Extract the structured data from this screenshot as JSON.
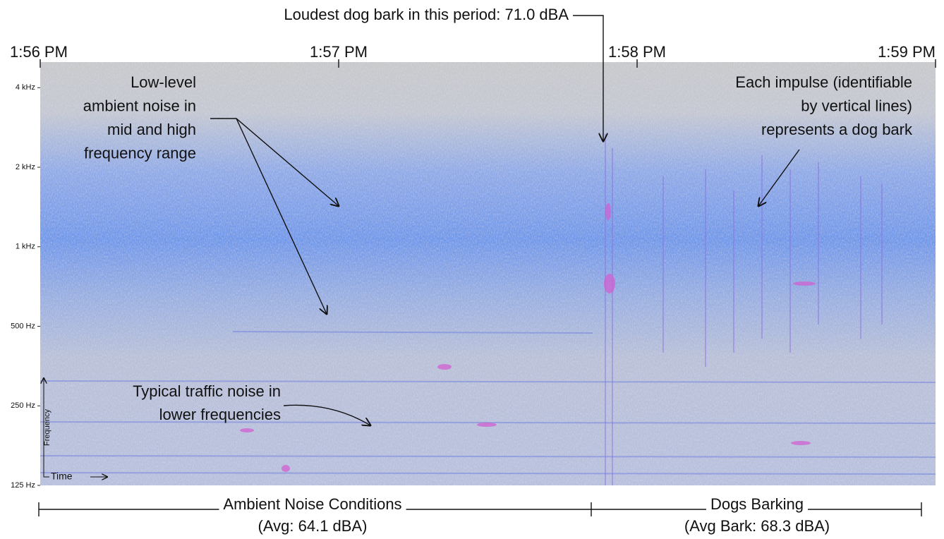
{
  "chart_data": {
    "type": "spectrogram",
    "xticks": [
      "1:56 PM",
      "1:57 PM",
      "1:58 PM",
      "1:59 PM"
    ],
    "ylim": [
      125,
      5000
    ],
    "y_scale": "log",
    "yticks": [
      {
        "value": 125,
        "label": "125 Hz"
      },
      {
        "value": 250,
        "label": "250 Hz"
      },
      {
        "value": 500,
        "label": "500 Hz"
      },
      {
        "value": 1000,
        "label": "1 kHz"
      },
      {
        "value": 2000,
        "label": "2 kHz"
      },
      {
        "value": 4000,
        "label": "4 kHz"
      }
    ],
    "x_label": "Time",
    "y_label": "Frequency",
    "annotations": {
      "loudest": "Loudest dog bark in this period: 71.0 dBA",
      "ambient": [
        "Low-level",
        "ambient noise in",
        "mid and high",
        "frequency range"
      ],
      "impulse": [
        "Each impulse (identifiable",
        "by vertical lines)",
        "represents a dog bark"
      ],
      "traffic": [
        "Typical traffic noise in",
        "lower frequencies"
      ]
    },
    "periods": [
      {
        "name": "Ambient Noise Conditions",
        "average": "(Avg: 64.1 dBA)"
      },
      {
        "name": "Dogs Barking",
        "average": "(Avg Bark: 68.3 dBA)"
      }
    ]
  }
}
